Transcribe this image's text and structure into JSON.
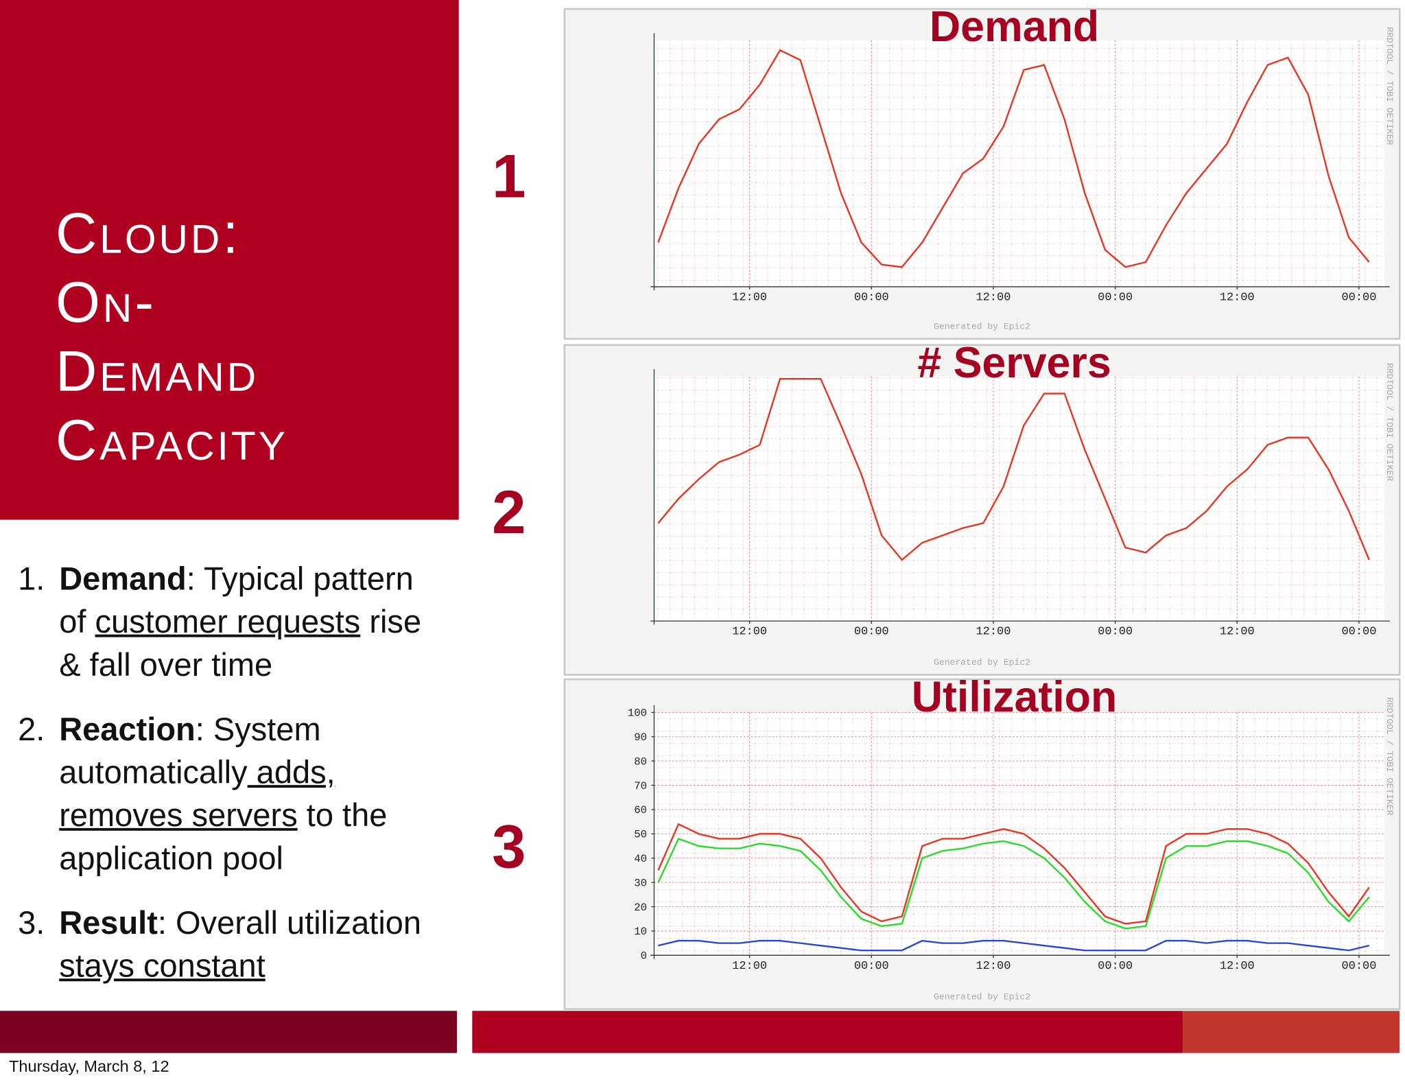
{
  "slide": {
    "title_lines": [
      "Cloud:",
      "On-",
      "Demand",
      "Capacity"
    ],
    "items": [
      {
        "marker": "1.",
        "segments": [
          {
            "text": "Demand",
            "style": "bold"
          },
          {
            "text": ": Typical pattern of ",
            "style": "plain"
          },
          {
            "text": "customer requests",
            "style": "underline"
          },
          {
            "text": " rise & fall over time",
            "style": "plain"
          }
        ]
      },
      {
        "marker": "2.",
        "segments": [
          {
            "text": "Reaction",
            "style": "bold"
          },
          {
            "text": ": System automatically",
            "style": "plain"
          },
          {
            "text": " adds, removes servers",
            "style": "underline"
          },
          {
            "text": " to the application pool",
            "style": "plain"
          }
        ]
      },
      {
        "marker": "3.",
        "segments": [
          {
            "text": "Result",
            "style": "bold"
          },
          {
            "text": ": Overall utilization ",
            "style": "plain"
          },
          {
            "text": "stays constant",
            "style": "underline"
          }
        ]
      }
    ],
    "footer": "Thursday, March 8, 12"
  },
  "chart_data": [
    {
      "type": "line",
      "title": "Demand",
      "panel_number": "1",
      "footnote": "Generated by Epic2",
      "side_note": "RRDTOOL / TOBI OETIKER",
      "x": [
        3,
        5,
        7,
        9,
        11,
        13,
        15,
        17,
        19,
        21,
        23,
        25,
        27,
        29,
        31,
        33,
        35,
        37,
        39,
        41,
        43,
        45,
        47,
        49,
        51,
        53,
        55,
        57,
        59,
        61,
        63,
        65,
        67,
        69,
        71,
        73
      ],
      "xlim": [
        2.6,
        74.5
      ],
      "xticks": [
        {
          "value": 12,
          "label": "12:00"
        },
        {
          "value": 24,
          "label": "00:00"
        },
        {
          "value": 36,
          "label": "12:00"
        },
        {
          "value": 48,
          "label": "00:00"
        },
        {
          "value": 60,
          "label": "12:00"
        },
        {
          "value": 72,
          "label": "00:00"
        }
      ],
      "ylim": [
        0,
        100
      ],
      "grid": true,
      "series": [
        {
          "color": "#e8321e",
          "values": [
            18,
            40,
            58,
            68,
            72,
            82,
            96,
            92,
            65,
            38,
            18,
            9,
            8,
            18,
            32,
            46,
            52,
            65,
            88,
            90,
            68,
            38,
            15,
            8,
            10,
            25,
            38,
            48,
            58,
            75,
            90,
            93,
            78,
            45,
            20,
            10
          ]
        }
      ]
    },
    {
      "type": "line",
      "title": "# Servers",
      "panel_number": "2",
      "footnote": "Generated by Epic2",
      "side_note": "RRDTOOL / TOBI OETIKER",
      "x": [
        3,
        5,
        7,
        9,
        11,
        13,
        15,
        17,
        19,
        21,
        23,
        25,
        27,
        29,
        31,
        33,
        35,
        37,
        39,
        41,
        43,
        45,
        47,
        49,
        51,
        53,
        55,
        57,
        59,
        61,
        63,
        65,
        67,
        69,
        71,
        73
      ],
      "xlim": [
        2.6,
        74.5
      ],
      "xticks": [
        {
          "value": 12,
          "label": "12:00"
        },
        {
          "value": 24,
          "label": "00:00"
        },
        {
          "value": 36,
          "label": "12:00"
        },
        {
          "value": 48,
          "label": "00:00"
        },
        {
          "value": 60,
          "label": "12:00"
        },
        {
          "value": 72,
          "label": "00:00"
        }
      ],
      "ylim": [
        0,
        100
      ],
      "grid": true,
      "series": [
        {
          "color": "#e8321e",
          "values": [
            40,
            50,
            58,
            65,
            68,
            72,
            99,
            99,
            99,
            80,
            60,
            35,
            25,
            32,
            35,
            38,
            40,
            55,
            80,
            93,
            93,
            70,
            50,
            30,
            28,
            35,
            38,
            45,
            55,
            62,
            72,
            75,
            75,
            62,
            45,
            25
          ]
        }
      ]
    },
    {
      "type": "line",
      "title": "Utilization",
      "panel_number": "3",
      "footnote": "Generated by Epic2",
      "side_note": "RRDTOOL / TOBI OETIKER",
      "x": [
        3,
        5,
        7,
        9,
        11,
        13,
        15,
        17,
        19,
        21,
        23,
        25,
        27,
        29,
        31,
        33,
        35,
        37,
        39,
        41,
        43,
        45,
        47,
        49,
        51,
        53,
        55,
        57,
        59,
        61,
        63,
        65,
        67,
        69,
        71,
        73
      ],
      "xlim": [
        2.6,
        74.5
      ],
      "xticks": [
        {
          "value": 12,
          "label": "12:00"
        },
        {
          "value": 24,
          "label": "00:00"
        },
        {
          "value": 36,
          "label": "12:00"
        },
        {
          "value": 48,
          "label": "00:00"
        },
        {
          "value": 60,
          "label": "12:00"
        },
        {
          "value": 72,
          "label": "00:00"
        }
      ],
      "ylim": [
        0,
        100
      ],
      "yticks": [
        0,
        10,
        20,
        30,
        40,
        50,
        60,
        70,
        80,
        90,
        100
      ],
      "grid": true,
      "series": [
        {
          "color": "#e8321e",
          "values": [
            35,
            54,
            50,
            48,
            48,
            50,
            50,
            48,
            40,
            28,
            18,
            14,
            16,
            45,
            48,
            48,
            50,
            52,
            50,
            44,
            36,
            26,
            16,
            13,
            14,
            45,
            50,
            50,
            52,
            52,
            50,
            46,
            38,
            26,
            16,
            28
          ]
        },
        {
          "color": "#22dd22",
          "values": [
            30,
            48,
            45,
            44,
            44,
            46,
            45,
            43,
            35,
            24,
            15,
            12,
            13,
            40,
            43,
            44,
            46,
            47,
            45,
            40,
            32,
            22,
            14,
            11,
            12,
            40,
            45,
            45,
            47,
            47,
            45,
            42,
            34,
            22,
            14,
            24
          ]
        },
        {
          "color": "#2244dd",
          "values": [
            4,
            6,
            6,
            5,
            5,
            6,
            6,
            5,
            4,
            3,
            2,
            2,
            2,
            6,
            5,
            5,
            6,
            6,
            5,
            4,
            3,
            2,
            2,
            2,
            2,
            6,
            6,
            5,
            6,
            6,
            5,
            5,
            4,
            3,
            2,
            4
          ]
        }
      ]
    }
  ]
}
